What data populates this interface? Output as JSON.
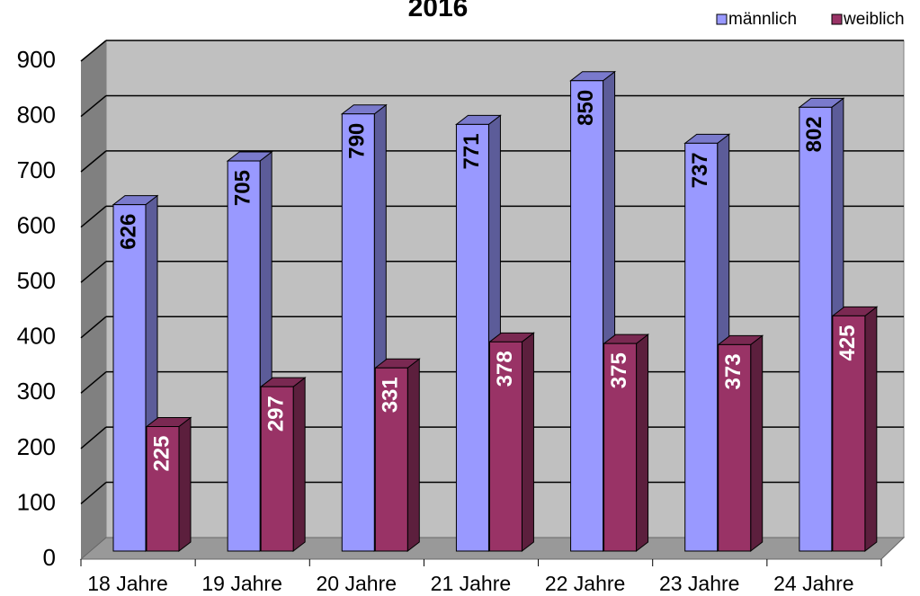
{
  "chart_data": {
    "type": "bar3d",
    "title": "2016",
    "categories": [
      "18 Jahre",
      "19 Jahre",
      "20 Jahre",
      "21 Jahre",
      "22 Jahre",
      "23 Jahre",
      "24 Jahre"
    ],
    "series": [
      {
        "name": "männlich",
        "color": "#9999ff",
        "values": [
          626,
          705,
          790,
          771,
          850,
          737,
          802
        ]
      },
      {
        "name": "weiblich",
        "color": "#993366",
        "values": [
          225,
          297,
          331,
          378,
          375,
          373,
          425
        ]
      }
    ],
    "ylim": [
      0,
      900
    ],
    "yticks": [
      0,
      100,
      200,
      300,
      400,
      500,
      600,
      700,
      800,
      900
    ],
    "grid": true,
    "legend": "top-right"
  }
}
